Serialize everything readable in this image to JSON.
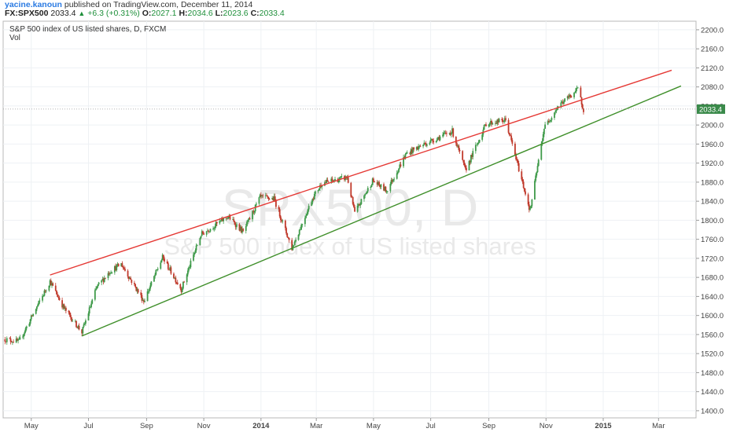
{
  "header": {
    "author": "yacine.kanoun",
    "published": "published on TradingView.com, December 11, 2014",
    "symbol": "FX:SPX500",
    "last": "2033.4",
    "change": "+6.3 (+0.31%)",
    "o_label": "O:",
    "o_value": "2027.1",
    "h_label": "H:",
    "h_value": "2034.6",
    "l_label": "L:",
    "l_value": "2023.6",
    "c_label": "C:",
    "c_value": "2033.4"
  },
  "colors": {
    "up": "#3f9a4a",
    "down": "#c0392b",
    "upper_trendline": "#e53935",
    "lower_trendline": "#3f8f2a",
    "last_price_tag": "#3a8a4a",
    "watermark": "#e9e9e9"
  },
  "chart_data": {
    "type": "candlestick",
    "title": "S&P 500 index of US listed shares, D, FXCM",
    "indicator_label": "Vol",
    "watermark_line1": "SPX500, D",
    "watermark_line2": "S&P 500 index of US listed shares",
    "y_ticks": [
      "2200.0",
      "2160.0",
      "2120.0",
      "2080.0",
      "2040.0",
      "2000.0",
      "1960.0",
      "1920.0",
      "1880.0",
      "1840.0",
      "1800.0",
      "1760.0",
      "1720.0",
      "1680.0",
      "1640.0",
      "1600.0",
      "1560.0",
      "1520.0",
      "1480.0",
      "1440.0",
      "1400.0"
    ],
    "y_range": [
      1385,
      2218
    ],
    "x_ticks": [
      "May",
      "Jul",
      "Sep",
      "Nov",
      "2014",
      "Mar",
      "May",
      "Jul",
      "Sep",
      "Nov",
      "2015",
      "Mar"
    ],
    "last_price_label": "2033.4",
    "grid": true,
    "price_path": [
      [
        "2013-04-03",
        1550
      ],
      [
        "2013-04-18",
        1545
      ],
      [
        "2013-05-01",
        1595
      ],
      [
        "2013-05-21",
        1672
      ],
      [
        "2013-06-05",
        1615
      ],
      [
        "2013-06-24",
        1565
      ],
      [
        "2013-07-10",
        1660
      ],
      [
        "2013-07-24",
        1693
      ],
      [
        "2013-08-05",
        1708
      ],
      [
        "2013-08-29",
        1630
      ],
      [
        "2013-09-18",
        1722
      ],
      [
        "2013-10-08",
        1655
      ],
      [
        "2013-10-29",
        1770
      ],
      [
        "2013-11-27",
        1808
      ],
      [
        "2013-12-13",
        1775
      ],
      [
        "2013-12-31",
        1848
      ],
      [
        "2014-01-15",
        1845
      ],
      [
        "2014-02-03",
        1741
      ],
      [
        "2014-02-25",
        1847
      ],
      [
        "2014-03-07",
        1878
      ],
      [
        "2014-04-03",
        1890
      ],
      [
        "2014-04-11",
        1815
      ],
      [
        "2014-04-30",
        1883
      ],
      [
        "2014-05-15",
        1862
      ],
      [
        "2014-06-05",
        1940
      ],
      [
        "2014-06-24",
        1960
      ],
      [
        "2014-07-24",
        1987
      ],
      [
        "2014-08-07",
        1905
      ],
      [
        "2014-08-29",
        2003
      ],
      [
        "2014-09-19",
        2010
      ],
      [
        "2014-10-15",
        1820
      ],
      [
        "2014-10-30",
        1994
      ],
      [
        "2014-11-14",
        2040
      ],
      [
        "2014-12-05",
        2075
      ],
      [
        "2014-12-11",
        2033
      ]
    ],
    "upper_trendline": [
      [
        "2013-05-21",
        1685
      ],
      [
        "2015-03-15",
        2115
      ]
    ],
    "lower_trendline": [
      [
        "2013-06-24",
        1557
      ],
      [
        "2015-03-25",
        2082
      ]
    ]
  }
}
